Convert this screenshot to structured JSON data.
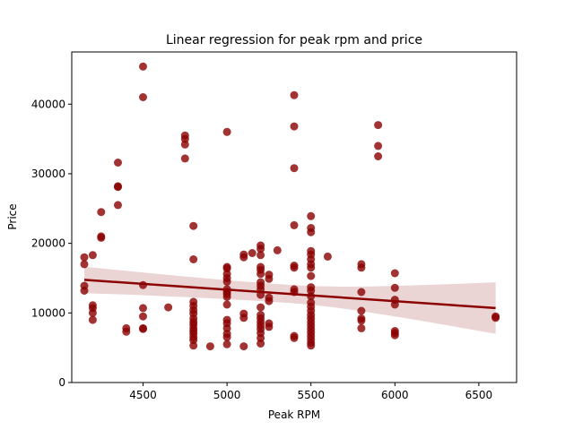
{
  "chart_data": {
    "type": "scatter",
    "title": "Linear regression for peak rpm and price",
    "xlabel": "Peak RPM",
    "ylabel": "Price",
    "xlim": [
      4075,
      6725
    ],
    "ylim": [
      0,
      47500
    ],
    "x_ticks": [
      4500,
      5000,
      5500,
      6000,
      6500
    ],
    "y_ticks": [
      0,
      10000,
      20000,
      30000,
      40000
    ],
    "x_tick_labels": [
      "4500",
      "5000",
      "5500",
      "6000",
      "6500"
    ],
    "y_tick_labels": [
      "0",
      "10000",
      "20000",
      "30000",
      "40000"
    ],
    "grid": false,
    "colors": {
      "points": "#8b0000",
      "line": "#8b0000",
      "band": "#e9cfcf"
    },
    "points": [
      [
        4150,
        18000
      ],
      [
        4150,
        17000
      ],
      [
        4150,
        13900
      ],
      [
        4150,
        13200
      ],
      [
        4200,
        18300
      ],
      [
        4200,
        11100
      ],
      [
        4200,
        10700
      ],
      [
        4200,
        10000
      ],
      [
        4200,
        9000
      ],
      [
        4250,
        24500
      ],
      [
        4250,
        21000
      ],
      [
        4250,
        20800
      ],
      [
        4350,
        31600
      ],
      [
        4350,
        28200
      ],
      [
        4350,
        28100
      ],
      [
        4350,
        25500
      ],
      [
        4400,
        7800
      ],
      [
        4400,
        7300
      ],
      [
        4500,
        45400
      ],
      [
        4500,
        41000
      ],
      [
        4500,
        14000
      ],
      [
        4500,
        10700
      ],
      [
        4500,
        9500
      ],
      [
        4500,
        7800
      ],
      [
        4500,
        7700
      ],
      [
        4650,
        10800
      ],
      [
        4750,
        35500
      ],
      [
        4750,
        35000
      ],
      [
        4750,
        34200
      ],
      [
        4750,
        32200
      ],
      [
        4800,
        22500
      ],
      [
        4800,
        17700
      ],
      [
        4800,
        11600
      ],
      [
        4800,
        11000
      ],
      [
        4800,
        10400
      ],
      [
        4800,
        9900
      ],
      [
        4800,
        9200
      ],
      [
        4800,
        8700
      ],
      [
        4800,
        8300
      ],
      [
        4800,
        7800
      ],
      [
        4800,
        7400
      ],
      [
        4800,
        7000
      ],
      [
        4800,
        6500
      ],
      [
        4800,
        6100
      ],
      [
        4800,
        5300
      ],
      [
        4900,
        5200
      ],
      [
        5000,
        36000
      ],
      [
        5000,
        16600
      ],
      [
        5000,
        16400
      ],
      [
        5000,
        15600
      ],
      [
        5000,
        15000
      ],
      [
        5000,
        14500
      ],
      [
        5000,
        13400
      ],
      [
        5000,
        13000
      ],
      [
        5000,
        12700
      ],
      [
        5000,
        12300
      ],
      [
        5000,
        11200
      ],
      [
        5000,
        9000
      ],
      [
        5000,
        8500
      ],
      [
        5000,
        7800
      ],
      [
        5000,
        7000
      ],
      [
        5000,
        6500
      ],
      [
        5000,
        5500
      ],
      [
        5100,
        18400
      ],
      [
        5100,
        18000
      ],
      [
        5100,
        5200
      ],
      [
        5100,
        9900
      ],
      [
        5100,
        9300
      ],
      [
        5150,
        18600
      ],
      [
        5200,
        19700
      ],
      [
        5200,
        19200
      ],
      [
        5200,
        18300
      ],
      [
        5200,
        16600
      ],
      [
        5200,
        16200
      ],
      [
        5200,
        15600
      ],
      [
        5200,
        14400
      ],
      [
        5200,
        13900
      ],
      [
        5200,
        13400
      ],
      [
        5200,
        12600
      ],
      [
        5200,
        10800
      ],
      [
        5200,
        9700
      ],
      [
        5200,
        9200
      ],
      [
        5200,
        8700
      ],
      [
        5200,
        8200
      ],
      [
        5200,
        7700
      ],
      [
        5200,
        7100
      ],
      [
        5200,
        6400
      ],
      [
        5200,
        5600
      ],
      [
        5250,
        15500
      ],
      [
        5250,
        14900
      ],
      [
        5250,
        12200
      ],
      [
        5250,
        11700
      ],
      [
        5250,
        8500
      ],
      [
        5250,
        8000
      ],
      [
        5300,
        19000
      ],
      [
        5400,
        41300
      ],
      [
        5400,
        36800
      ],
      [
        5400,
        30800
      ],
      [
        5400,
        22600
      ],
      [
        5400,
        16800
      ],
      [
        5400,
        16500
      ],
      [
        5400,
        13400
      ],
      [
        5400,
        13000
      ],
      [
        5400,
        6700
      ],
      [
        5400,
        6400
      ],
      [
        5500,
        23900
      ],
      [
        5500,
        22200
      ],
      [
        5500,
        21600
      ],
      [
        5500,
        18900
      ],
      [
        5500,
        18400
      ],
      [
        5500,
        17700
      ],
      [
        5500,
        17000
      ],
      [
        5500,
        16500
      ],
      [
        5500,
        15300
      ],
      [
        5500,
        13700
      ],
      [
        5500,
        13200
      ],
      [
        5500,
        12400
      ],
      [
        5500,
        11500
      ],
      [
        5500,
        10900
      ],
      [
        5500,
        10300
      ],
      [
        5500,
        9700
      ],
      [
        5500,
        9200
      ],
      [
        5500,
        8700
      ],
      [
        5500,
        8200
      ],
      [
        5500,
        7700
      ],
      [
        5500,
        7200
      ],
      [
        5500,
        6700
      ],
      [
        5500,
        6200
      ],
      [
        5500,
        5700
      ],
      [
        5500,
        5300
      ],
      [
        5600,
        18100
      ],
      [
        5800,
        17000
      ],
      [
        5800,
        16500
      ],
      [
        5800,
        13000
      ],
      [
        5800,
        10300
      ],
      [
        5800,
        9200
      ],
      [
        5800,
        8900
      ],
      [
        5800,
        7800
      ],
      [
        5900,
        37000
      ],
      [
        5900,
        34000
      ],
      [
        5900,
        32500
      ],
      [
        6000,
        15700
      ],
      [
        6000,
        13600
      ],
      [
        6000,
        11900
      ],
      [
        6000,
        11200
      ],
      [
        6000,
        7400
      ],
      [
        6000,
        7100
      ],
      [
        6000,
        6800
      ],
      [
        6600,
        9500
      ],
      [
        6600,
        9300
      ]
    ],
    "regression": {
      "x": [
        4150,
        6600
      ],
      "y": [
        14750,
        10700
      ],
      "ci_upper": [
        16700,
        14400
      ],
      "ci_lower": [
        12900,
        7000
      ]
    }
  }
}
